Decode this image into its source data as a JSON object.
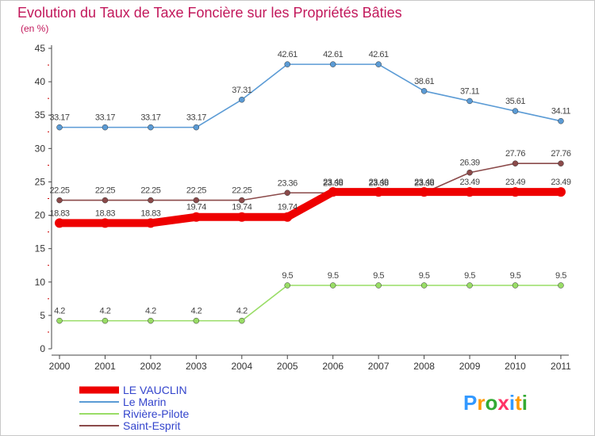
{
  "chart_data": {
    "type": "line",
    "title": "Evolution du Taux de Taxe Foncière sur les Propriétés Bâties",
    "subtitle": "(en %)",
    "xlabel": "",
    "ylabel": "",
    "ylim": [
      0,
      45
    ],
    "yticks": [
      0,
      5,
      10,
      15,
      20,
      25,
      30,
      35,
      40,
      45
    ],
    "categories": [
      "2000",
      "2001",
      "2002",
      "2003",
      "2004",
      "2005",
      "2006",
      "2007",
      "2008",
      "2009",
      "2010",
      "2011"
    ],
    "grid": false,
    "legend_position": "bottom-left",
    "series": [
      {
        "name": "LE VAUCLIN",
        "color": "#ee0000",
        "emphasis": true,
        "values": [
          18.83,
          18.83,
          18.83,
          19.74,
          19.74,
          19.74,
          23.49,
          23.49,
          23.49,
          23.49,
          23.49,
          23.49
        ],
        "labels": [
          "18.83",
          "18.83",
          "18.83",
          "19.74",
          "19.74",
          "19.74",
          "23.49",
          "23.49",
          "23.49",
          "23.49",
          "23.49",
          "23.49"
        ]
      },
      {
        "name": "Le Marin",
        "color": "#5b9bd5",
        "values": [
          33.17,
          33.17,
          33.17,
          33.17,
          37.31,
          42.61,
          42.61,
          42.61,
          38.61,
          37.11,
          35.61,
          34.11
        ],
        "labels": [
          "33.17",
          "33.17",
          "33.17",
          "33.17",
          "37.31",
          "42.61",
          "42.61",
          "42.61",
          "38.61",
          "37.11",
          "35.61",
          "34.11"
        ]
      },
      {
        "name": "Rivière-Pilote",
        "color": "#99dd66",
        "values": [
          4.2,
          4.2,
          4.2,
          4.2,
          4.2,
          9.5,
          9.5,
          9.5,
          9.5,
          9.5,
          9.5,
          9.5
        ],
        "labels": [
          "4.2",
          "4.2",
          "4.2",
          "4.2",
          "4.2",
          "9.5",
          "9.5",
          "9.5",
          "9.5",
          "9.5",
          "9.5",
          "9.5"
        ]
      },
      {
        "name": "Saint-Esprit",
        "color": "#8b4a4a",
        "values": [
          22.25,
          22.25,
          22.25,
          22.25,
          22.25,
          23.36,
          23.36,
          23.36,
          23.36,
          26.39,
          27.76,
          27.76
        ],
        "labels": [
          "22.25",
          "22.25",
          "22.25",
          "22.25",
          "22.25",
          "23.36",
          "23.36",
          "23.36",
          "23.36",
          "26.39",
          "27.76",
          "27.76"
        ]
      }
    ]
  },
  "logo": {
    "text": "Proxiti",
    "colors": [
      "#3399ff",
      "#ff9900",
      "#33aa33",
      "#ff3366",
      "#3399ff",
      "#ff9900",
      "#33aa33"
    ]
  }
}
